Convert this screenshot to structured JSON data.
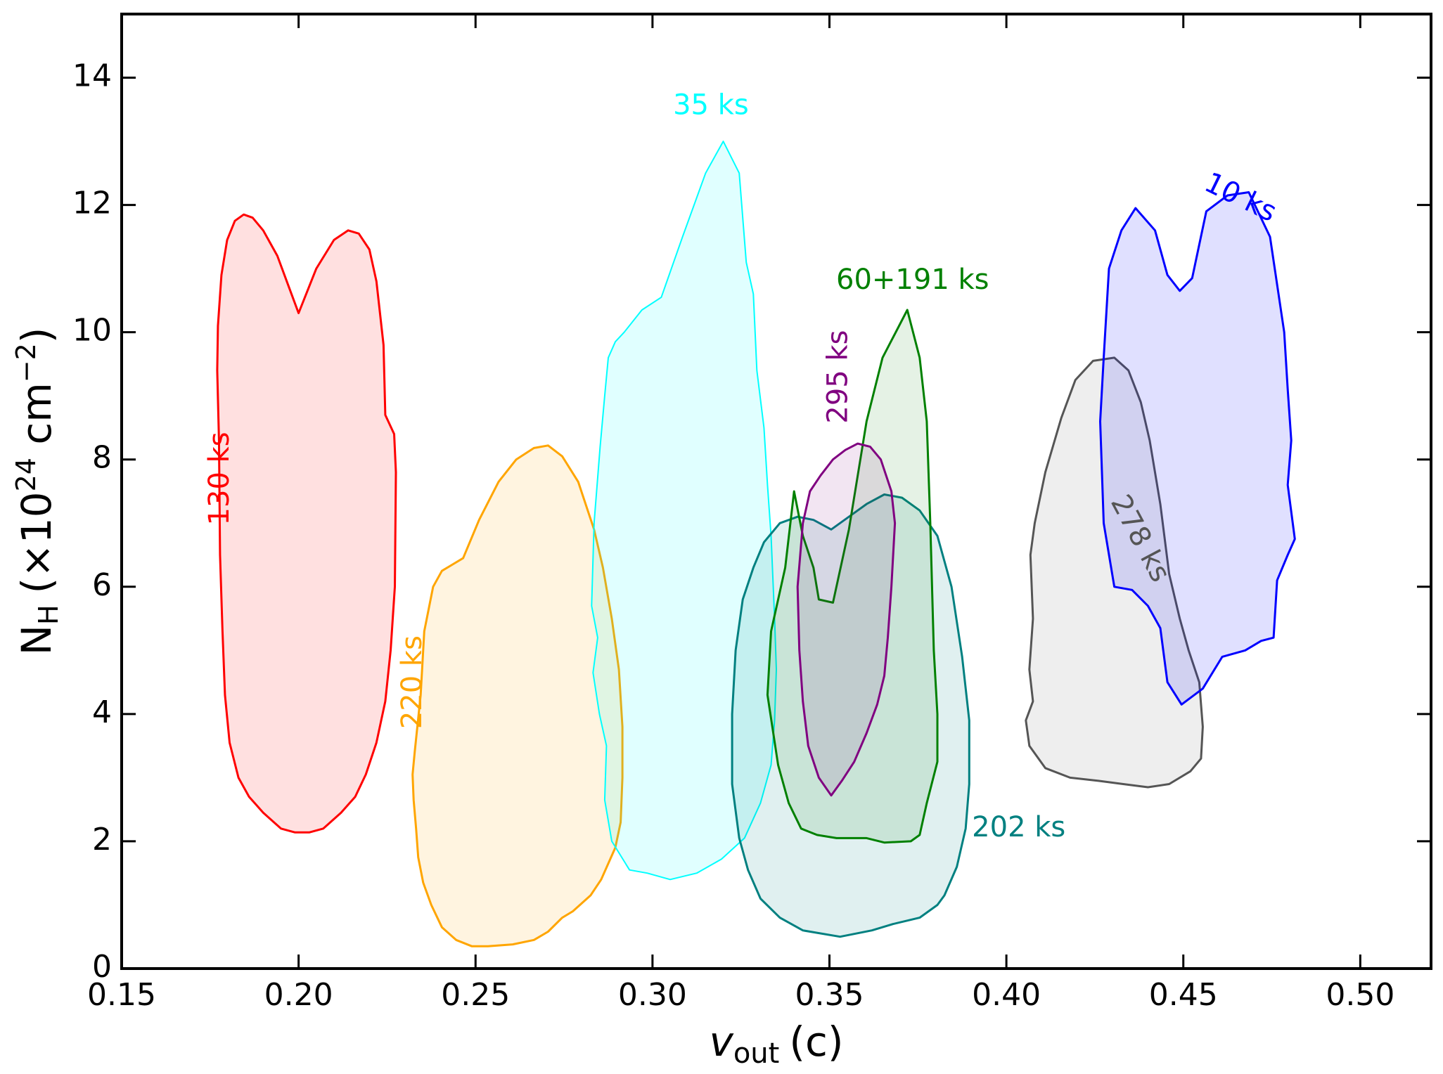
{
  "chart_data": {
    "type": "contour",
    "title": "",
    "xlabel": "v_out (c)",
    "xlabel_parts": {
      "symbol": "v",
      "subscript": "out",
      "unit": "(c)"
    },
    "ylabel": "N_H (×10^24 cm^-2)",
    "ylabel_parts": {
      "symbol": "N",
      "subscript": "H",
      "prefix": "(×10",
      "exponent": "24",
      "unit": " cm",
      "unit_exponent": "−2",
      "suffix": ")"
    },
    "xlim": [
      0.15,
      0.52
    ],
    "ylim": [
      0,
      15
    ],
    "xticks": [
      0.15,
      0.2,
      0.25,
      0.3,
      0.35,
      0.4,
      0.45,
      0.5
    ],
    "xtick_labels": [
      "0.15",
      "0.20",
      "0.25",
      "0.30",
      "0.35",
      "0.40",
      "0.45",
      "0.50"
    ],
    "yticks": [
      0,
      2,
      4,
      6,
      8,
      10,
      12,
      14
    ],
    "ytick_labels": [
      "0",
      "2",
      "4",
      "6",
      "8",
      "10",
      "12",
      "14"
    ],
    "series": [
      {
        "name": "130 ks",
        "color": "#ff0000",
        "fill_opacity": 0.12,
        "stroke_width": 3,
        "label_x": 0.178,
        "label_y": 7.7,
        "label_rotation": -90,
        "points": [
          [
            0.2,
            10.3
          ],
          [
            0.205,
            11.0
          ],
          [
            0.21,
            11.45
          ],
          [
            0.214,
            11.6
          ],
          [
            0.217,
            11.55
          ],
          [
            0.22,
            11.3
          ],
          [
            0.222,
            10.8
          ],
          [
            0.224,
            9.8
          ],
          [
            0.2245,
            8.7
          ],
          [
            0.227,
            8.4
          ],
          [
            0.2275,
            7.8
          ],
          [
            0.2272,
            6.0
          ],
          [
            0.226,
            5.0
          ],
          [
            0.2245,
            4.2
          ],
          [
            0.222,
            3.55
          ],
          [
            0.219,
            3.05
          ],
          [
            0.216,
            2.7
          ],
          [
            0.212,
            2.45
          ],
          [
            0.207,
            2.2
          ],
          [
            0.203,
            2.14
          ],
          [
            0.199,
            2.14
          ],
          [
            0.195,
            2.2
          ],
          [
            0.19,
            2.45
          ],
          [
            0.186,
            2.7
          ],
          [
            0.183,
            3.0
          ],
          [
            0.1805,
            3.55
          ],
          [
            0.1792,
            4.3
          ],
          [
            0.1785,
            5.3
          ],
          [
            0.1778,
            6.5
          ],
          [
            0.1775,
            8.3
          ],
          [
            0.177,
            9.4
          ],
          [
            0.1772,
            10.1
          ],
          [
            0.1782,
            10.9
          ],
          [
            0.1798,
            11.45
          ],
          [
            0.182,
            11.75
          ],
          [
            0.1845,
            11.85
          ],
          [
            0.187,
            11.8
          ],
          [
            0.19,
            11.6
          ],
          [
            0.194,
            11.2
          ],
          [
            0.197,
            10.75
          ],
          [
            0.2,
            10.3
          ]
        ]
      },
      {
        "name": "220 ks",
        "color": "#ffa500",
        "fill_opacity": 0.12,
        "stroke_width": 3,
        "label_x": 0.2325,
        "label_y": 4.5,
        "label_rotation": -90,
        "points": [
          [
            0.2355,
            5.3
          ],
          [
            0.238,
            6.0
          ],
          [
            0.2405,
            6.25
          ],
          [
            0.2435,
            6.35
          ],
          [
            0.2465,
            6.45
          ],
          [
            0.251,
            7.05
          ],
          [
            0.2565,
            7.65
          ],
          [
            0.2615,
            8.0
          ],
          [
            0.2665,
            8.18
          ],
          [
            0.2705,
            8.22
          ],
          [
            0.2745,
            8.05
          ],
          [
            0.279,
            7.65
          ],
          [
            0.2835,
            6.9
          ],
          [
            0.286,
            6.3
          ],
          [
            0.2885,
            5.5
          ],
          [
            0.2905,
            4.7
          ],
          [
            0.2915,
            3.8
          ],
          [
            0.2915,
            3.0
          ],
          [
            0.291,
            2.3
          ],
          [
            0.2895,
            1.9
          ],
          [
            0.2855,
            1.4
          ],
          [
            0.2825,
            1.15
          ],
          [
            0.2775,
            0.9
          ],
          [
            0.2745,
            0.8
          ],
          [
            0.2705,
            0.58
          ],
          [
            0.2665,
            0.45
          ],
          [
            0.2605,
            0.38
          ],
          [
            0.2535,
            0.35
          ],
          [
            0.249,
            0.35
          ],
          [
            0.2445,
            0.45
          ],
          [
            0.2405,
            0.65
          ],
          [
            0.2375,
            1.0
          ],
          [
            0.2352,
            1.35
          ],
          [
            0.2338,
            1.75
          ],
          [
            0.2332,
            2.2
          ],
          [
            0.2325,
            2.65
          ],
          [
            0.2322,
            3.05
          ],
          [
            0.2328,
            3.4
          ],
          [
            0.2345,
            4.3
          ],
          [
            0.2355,
            5.3
          ]
        ]
      },
      {
        "name": "35 ks",
        "color": "#00ffff",
        "fill_opacity": 0.12,
        "stroke_width": 2,
        "label_x": 0.3165,
        "label_y": 13.55,
        "label_rotation": 0,
        "points": [
          [
            0.32,
            13.0
          ],
          [
            0.3245,
            12.5
          ],
          [
            0.3265,
            11.1
          ],
          [
            0.3285,
            10.6
          ],
          [
            0.3295,
            9.4
          ],
          [
            0.3315,
            8.5
          ],
          [
            0.3325,
            7.6
          ],
          [
            0.3335,
            6.8
          ],
          [
            0.3345,
            5.5
          ],
          [
            0.335,
            4.7
          ],
          [
            0.3345,
            3.9
          ],
          [
            0.3335,
            3.2
          ],
          [
            0.3305,
            2.6
          ],
          [
            0.326,
            2.05
          ],
          [
            0.3195,
            1.72
          ],
          [
            0.3125,
            1.5
          ],
          [
            0.305,
            1.4
          ],
          [
            0.2985,
            1.5
          ],
          [
            0.2935,
            1.55
          ],
          [
            0.2885,
            2.0
          ],
          [
            0.2865,
            2.65
          ],
          [
            0.287,
            3.5
          ],
          [
            0.285,
            4.0
          ],
          [
            0.2832,
            4.65
          ],
          [
            0.2845,
            5.2
          ],
          [
            0.2828,
            5.7
          ],
          [
            0.2835,
            7.0
          ],
          [
            0.2852,
            8.2
          ],
          [
            0.2865,
            9.0
          ],
          [
            0.2875,
            9.6
          ],
          [
            0.2895,
            9.85
          ],
          [
            0.292,
            10.0
          ],
          [
            0.297,
            10.35
          ],
          [
            0.3025,
            10.55
          ],
          [
            0.3085,
            11.5
          ],
          [
            0.315,
            12.5
          ],
          [
            0.32,
            13.0
          ]
        ]
      },
      {
        "name": "202 ks",
        "color": "#008080",
        "fill_opacity": 0.12,
        "stroke_width": 3,
        "label_x": 0.4035,
        "label_y": 2.2,
        "label_rotation": 0,
        "points": [
          [
            0.3505,
            6.9
          ],
          [
            0.3555,
            7.1
          ],
          [
            0.3605,
            7.3
          ],
          [
            0.3655,
            7.45
          ],
          [
            0.3705,
            7.4
          ],
          [
            0.3755,
            7.2
          ],
          [
            0.3805,
            6.8
          ],
          [
            0.3845,
            6.0
          ],
          [
            0.3875,
            4.9
          ],
          [
            0.3895,
            3.9
          ],
          [
            0.3895,
            2.9
          ],
          [
            0.3885,
            2.2
          ],
          [
            0.386,
            1.6
          ],
          [
            0.3825,
            1.15
          ],
          [
            0.3805,
            1.0
          ],
          [
            0.3755,
            0.8
          ],
          [
            0.368,
            0.7
          ],
          [
            0.362,
            0.6
          ],
          [
            0.353,
            0.5
          ],
          [
            0.3425,
            0.6
          ],
          [
            0.336,
            0.8
          ],
          [
            0.3305,
            1.1
          ],
          [
            0.327,
            1.55
          ],
          [
            0.3245,
            2.05
          ],
          [
            0.3225,
            2.9
          ],
          [
            0.3225,
            4.0
          ],
          [
            0.3235,
            5.0
          ],
          [
            0.3255,
            5.8
          ],
          [
            0.3285,
            6.3
          ],
          [
            0.3315,
            6.7
          ],
          [
            0.336,
            7.0
          ],
          [
            0.341,
            7.1
          ],
          [
            0.3455,
            7.05
          ],
          [
            0.3505,
            6.9
          ]
        ]
      },
      {
        "name": "60+191 ks",
        "color": "#008000",
        "fill_opacity": 0.1,
        "stroke_width": 3,
        "label_x": 0.3735,
        "label_y": 10.8,
        "label_rotation": 0,
        "points": [
          [
            0.372,
            10.35
          ],
          [
            0.3755,
            9.6
          ],
          [
            0.3775,
            8.6
          ],
          [
            0.3785,
            7.0
          ],
          [
            0.3795,
            5.0
          ],
          [
            0.3805,
            4.0
          ],
          [
            0.3805,
            3.25
          ],
          [
            0.3775,
            2.6
          ],
          [
            0.3755,
            2.1
          ],
          [
            0.373,
            2.0
          ],
          [
            0.3655,
            1.98
          ],
          [
            0.3605,
            2.05
          ],
          [
            0.352,
            2.05
          ],
          [
            0.3465,
            2.1
          ],
          [
            0.342,
            2.2
          ],
          [
            0.3385,
            2.6
          ],
          [
            0.3355,
            3.2
          ],
          [
            0.3325,
            4.3
          ],
          [
            0.3335,
            5.3
          ],
          [
            0.3375,
            6.3
          ],
          [
            0.34,
            7.5
          ],
          [
            0.3425,
            6.8
          ],
          [
            0.3455,
            6.3
          ],
          [
            0.347,
            5.8
          ],
          [
            0.351,
            5.75
          ],
          [
            0.3555,
            6.9
          ],
          [
            0.3605,
            8.6
          ],
          [
            0.365,
            9.6
          ],
          [
            0.372,
            10.35
          ]
        ]
      },
      {
        "name": "295 ks",
        "color": "#800080",
        "fill_opacity": 0.1,
        "stroke_width": 3,
        "label_x": 0.3528,
        "label_y": 9.3,
        "label_rotation": -90,
        "points": [
          [
            0.351,
            8.0
          ],
          [
            0.3545,
            8.15
          ],
          [
            0.358,
            8.25
          ],
          [
            0.3615,
            8.2
          ],
          [
            0.3645,
            8.0
          ],
          [
            0.3675,
            7.5
          ],
          [
            0.3685,
            7.0
          ],
          [
            0.3675,
            6.0
          ],
          [
            0.3665,
            5.2
          ],
          [
            0.3655,
            4.6
          ],
          [
            0.3635,
            4.15
          ],
          [
            0.3605,
            3.7
          ],
          [
            0.357,
            3.25
          ],
          [
            0.3535,
            2.95
          ],
          [
            0.3505,
            2.72
          ],
          [
            0.347,
            3.0
          ],
          [
            0.344,
            3.5
          ],
          [
            0.3425,
            4.2
          ],
          [
            0.3415,
            5.0
          ],
          [
            0.341,
            6.0
          ],
          [
            0.3425,
            7.0
          ],
          [
            0.3445,
            7.5
          ],
          [
            0.3475,
            7.75
          ],
          [
            0.351,
            8.0
          ]
        ]
      },
      {
        "name": "278 ks",
        "color": "#555555",
        "fill_opacity": 0.1,
        "stroke_width": 3,
        "label_x": 0.4375,
        "label_y": 6.75,
        "label_rotation": 62,
        "points": [
          [
            0.4305,
            9.6
          ],
          [
            0.4345,
            9.4
          ],
          [
            0.438,
            8.9
          ],
          [
            0.4405,
            8.3
          ],
          [
            0.4435,
            7.3
          ],
          [
            0.446,
            6.2
          ],
          [
            0.449,
            5.5
          ],
          [
            0.4515,
            5.0
          ],
          [
            0.4545,
            4.5
          ],
          [
            0.4555,
            3.8
          ],
          [
            0.455,
            3.3
          ],
          [
            0.452,
            3.1
          ],
          [
            0.446,
            2.9
          ],
          [
            0.44,
            2.85
          ],
          [
            0.433,
            2.9
          ],
          [
            0.426,
            2.95
          ],
          [
            0.418,
            3.0
          ],
          [
            0.411,
            3.15
          ],
          [
            0.4065,
            3.5
          ],
          [
            0.4055,
            3.9
          ],
          [
            0.4075,
            4.2
          ],
          [
            0.4065,
            4.7
          ],
          [
            0.4075,
            5.5
          ],
          [
            0.4068,
            6.5
          ],
          [
            0.408,
            7.0
          ],
          [
            0.411,
            7.8
          ],
          [
            0.4155,
            8.65
          ],
          [
            0.4195,
            9.25
          ],
          [
            0.4245,
            9.55
          ],
          [
            0.4305,
            9.6
          ]
        ]
      },
      {
        "name": "10 ks",
        "color": "#0000ff",
        "fill_opacity": 0.12,
        "stroke_width": 3,
        "label_x": 0.466,
        "label_y": 12.1,
        "label_rotation": 26,
        "points": [
          [
            0.4365,
            11.95
          ],
          [
            0.442,
            11.6
          ],
          [
            0.4455,
            10.9
          ],
          [
            0.449,
            10.65
          ],
          [
            0.4525,
            10.85
          ],
          [
            0.4565,
            11.9
          ],
          [
            0.4625,
            12.15
          ],
          [
            0.4685,
            12.2
          ],
          [
            0.4745,
            11.5
          ],
          [
            0.4785,
            10.0
          ],
          [
            0.4795,
            9.1
          ],
          [
            0.4805,
            8.3
          ],
          [
            0.4795,
            7.6
          ],
          [
            0.4815,
            6.75
          ],
          [
            0.4795,
            6.5
          ],
          [
            0.4765,
            6.1
          ],
          [
            0.4755,
            5.2
          ],
          [
            0.472,
            5.15
          ],
          [
            0.4675,
            5.0
          ],
          [
            0.461,
            4.9
          ],
          [
            0.4555,
            4.4
          ],
          [
            0.4495,
            4.15
          ],
          [
            0.4455,
            4.5
          ],
          [
            0.4435,
            5.35
          ],
          [
            0.44,
            5.7
          ],
          [
            0.4355,
            5.95
          ],
          [
            0.4305,
            6.0
          ],
          [
            0.4275,
            7.0
          ],
          [
            0.4265,
            8.6
          ],
          [
            0.4275,
            9.6
          ],
          [
            0.429,
            11.0
          ],
          [
            0.4325,
            11.6
          ],
          [
            0.4365,
            11.95
          ]
        ]
      }
    ]
  }
}
